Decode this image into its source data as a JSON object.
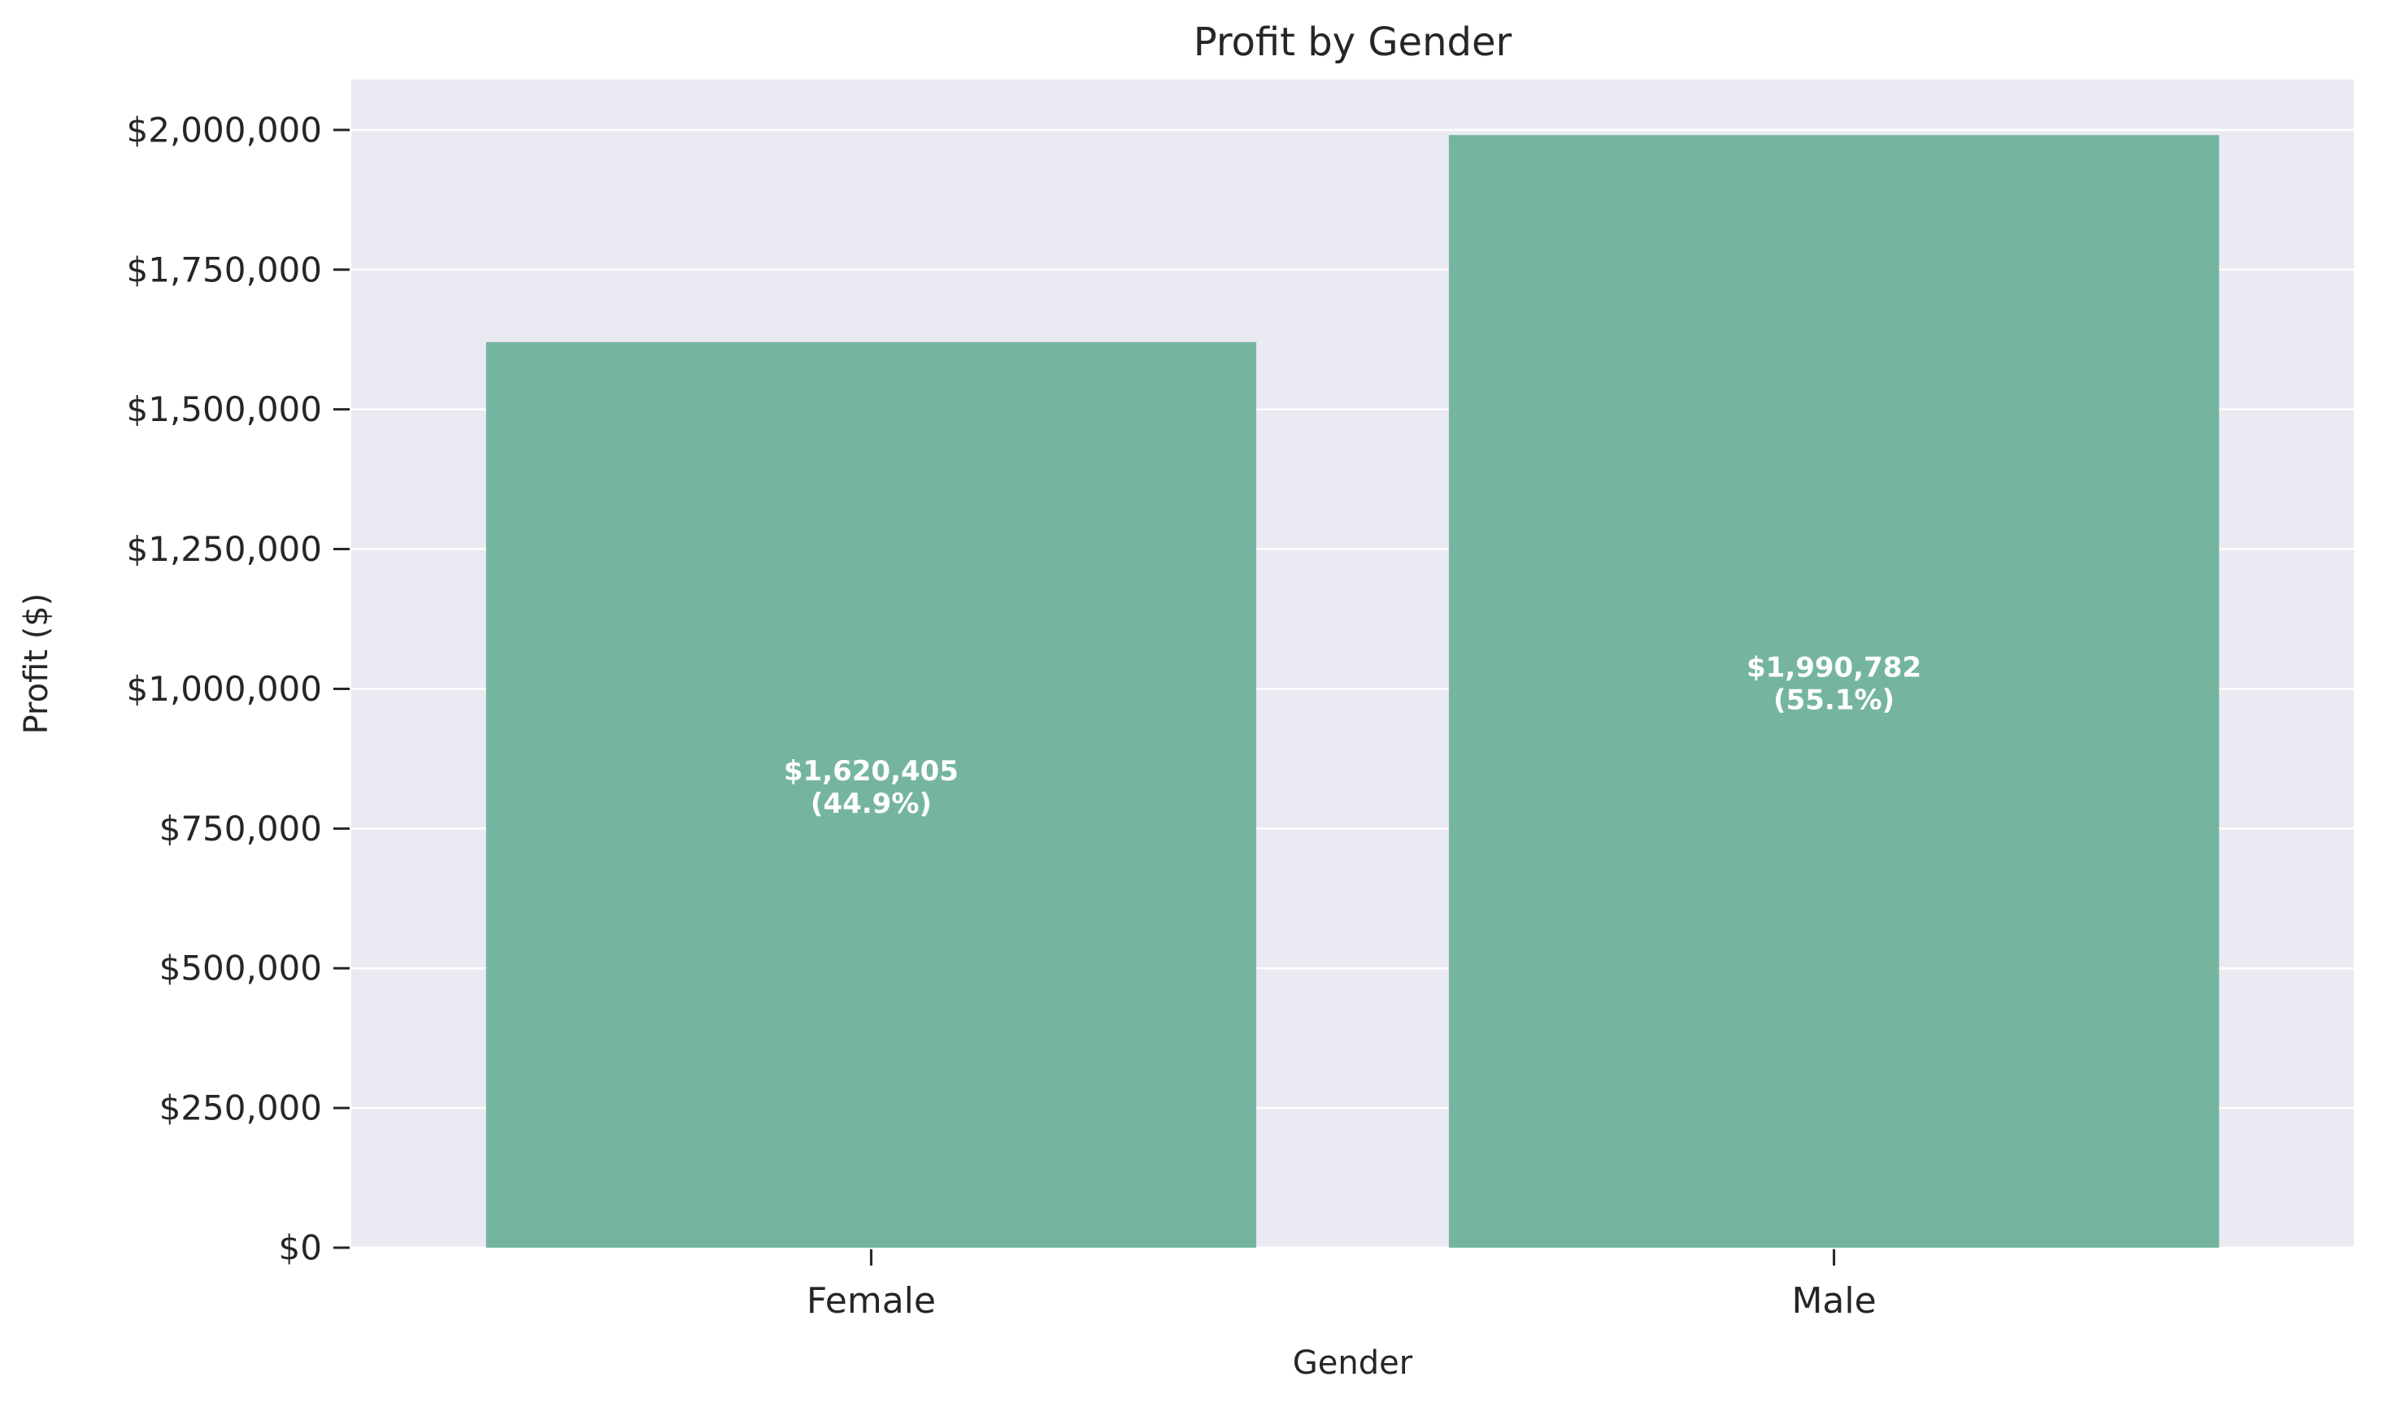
{
  "chart_data": {
    "type": "bar",
    "title": "Profit by Gender",
    "xlabel": "Gender",
    "ylabel": "Profit ($)",
    "categories": [
      "Female",
      "Male"
    ],
    "values": [
      1620405,
      1990782
    ],
    "value_labels": [
      "$1,620,405",
      "$1,990,782"
    ],
    "percent_labels": [
      "(44.9%)",
      "(55.1%)"
    ],
    "ylim": [
      0,
      2090000
    ],
    "yticks": [
      0,
      250000,
      500000,
      750000,
      1000000,
      1250000,
      1500000,
      1750000,
      2000000
    ],
    "ytick_labels": [
      "$0",
      "$250,000",
      "$500,000",
      "$750,000",
      "$1,000,000",
      "$1,250,000",
      "$1,500,000",
      "$1,750,000",
      "$2,000,000"
    ],
    "grid": true,
    "legend": "none",
    "colors": {
      "bar": "#75b5a0",
      "plot_background": "#eaeaf2",
      "grid": "#ffffff",
      "text": "#262626",
      "bar_label": "#ffffff"
    }
  }
}
